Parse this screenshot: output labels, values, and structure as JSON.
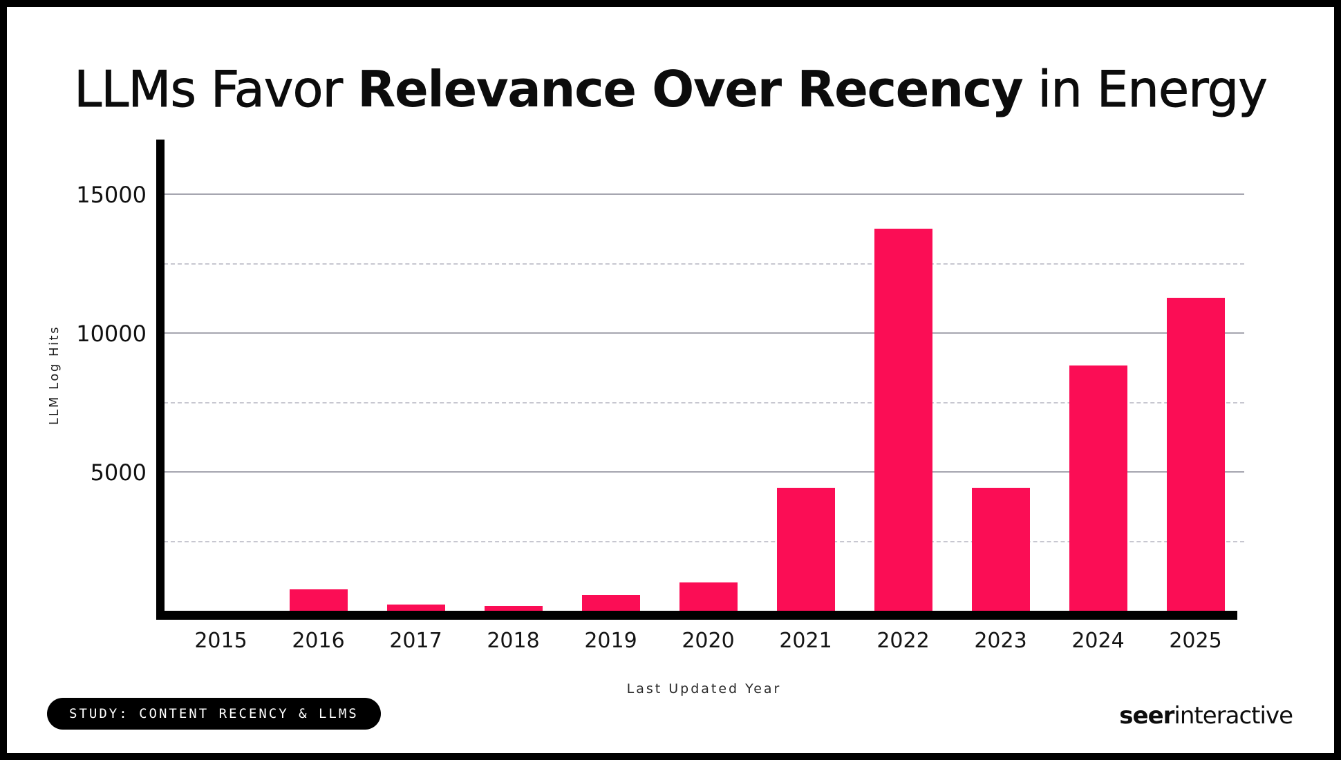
{
  "title": {
    "prefix": "LLMs Favor ",
    "emphasis": "Relevance Over Recency",
    "suffix": " in Energy"
  },
  "chart_data": {
    "type": "bar",
    "title": "LLMs Favor Relevance Over Recency in Energy",
    "xlabel": "Last Updated Year",
    "ylabel": "LLM Log Hits",
    "categories": [
      "2015",
      "2016",
      "2017",
      "2018",
      "2019",
      "2020",
      "2021",
      "2022",
      "2023",
      "2024",
      "2025"
    ],
    "values": [
      0,
      800,
      250,
      200,
      600,
      1050,
      4450,
      13800,
      4450,
      8850,
      11300
    ],
    "y_ticks": [
      5000,
      10000,
      15000
    ],
    "y_gridlines_dashed": [
      2500,
      7500,
      12500
    ],
    "ylim": [
      0,
      17000
    ],
    "grid": true,
    "legend": false,
    "bar_color": "#fb0d55"
  },
  "footer": {
    "badge": "STUDY: CONTENT RECENCY & LLMS",
    "logo_bold": "seer",
    "logo_regular": "interactive"
  },
  "colors": {
    "bar": "#fb0d55",
    "background": "#ffffff",
    "frame": "#000000",
    "grid_solid": "#a5a5af",
    "grid_dashed": "#c7c7d0"
  }
}
